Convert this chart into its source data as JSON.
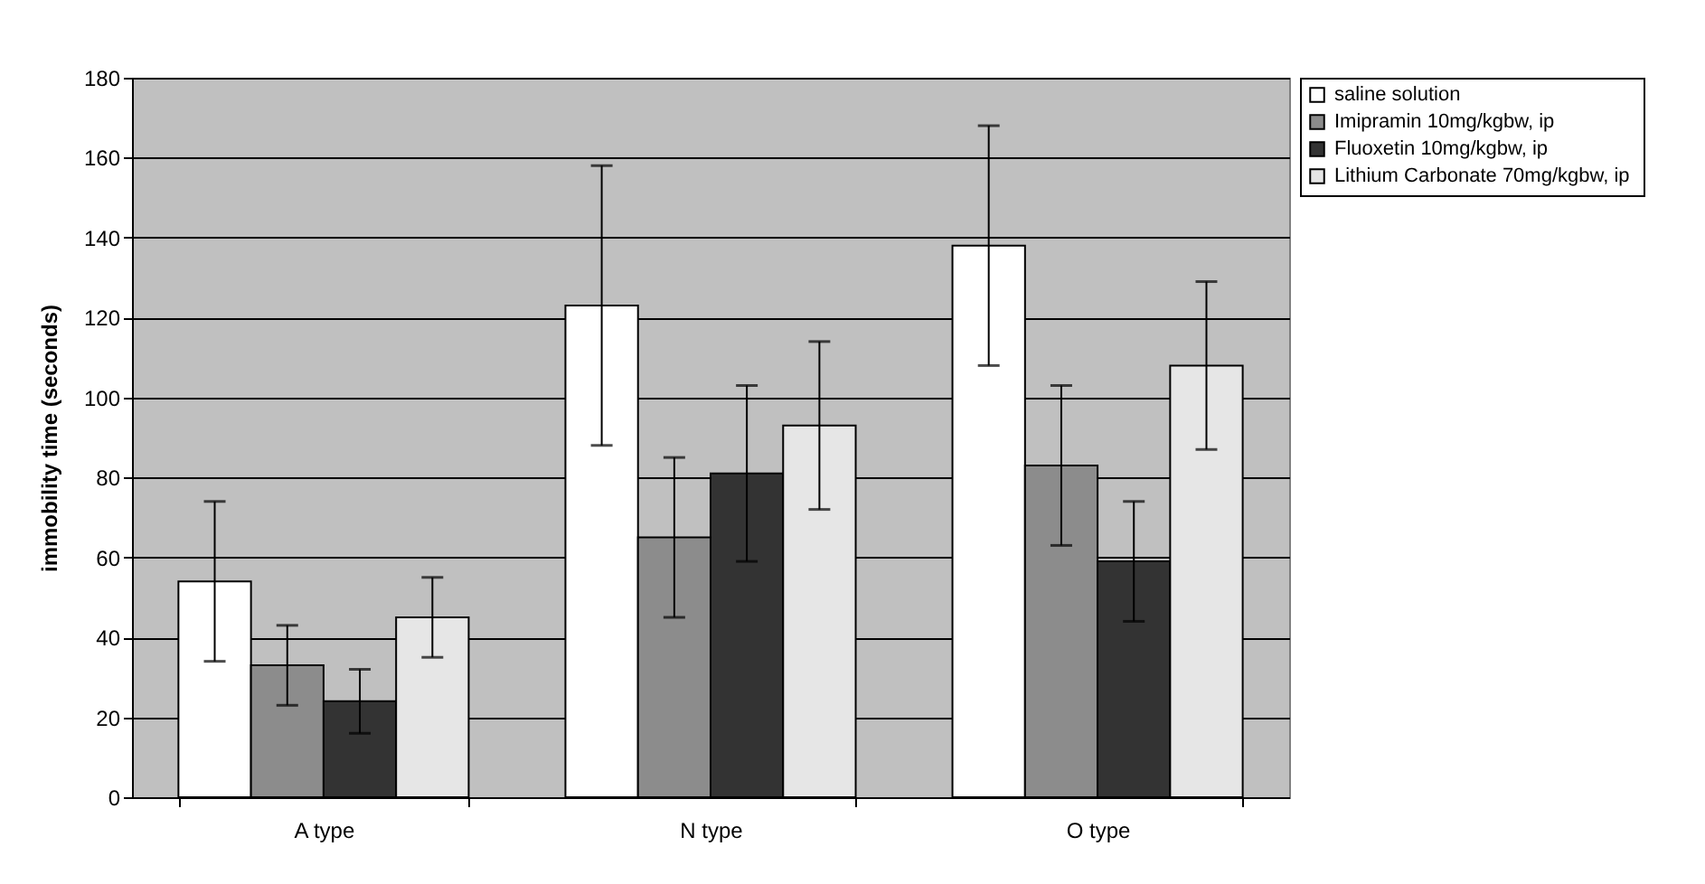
{
  "chart_data": {
    "type": "bar",
    "ylabel": "immobility time (seconds)",
    "categories": [
      "A type",
      "N type",
      "O type"
    ],
    "series": [
      {
        "name": "saline solution",
        "color": "#ffffff",
        "values": [
          54,
          123,
          138
        ],
        "errors": [
          20,
          35,
          30
        ]
      },
      {
        "name": "Imipramin 10mg/kgbw, ip",
        "color": "#8c8c8c",
        "values": [
          33,
          65,
          83
        ],
        "errors": [
          10,
          20,
          20
        ]
      },
      {
        "name": "Fluoxetin 10mg/kgbw, ip",
        "color": "#333333",
        "values": [
          24,
          81,
          59
        ],
        "errors": [
          8,
          22,
          15
        ]
      },
      {
        "name": "Lithium Carbonate  70mg/kgbw, ip",
        "color": "#e6e6e6",
        "values": [
          45,
          93,
          108
        ],
        "errors": [
          10,
          21,
          21
        ]
      }
    ],
    "ylim": [
      0,
      180
    ],
    "yticks": [
      0,
      20,
      40,
      60,
      80,
      100,
      120,
      140,
      160,
      180
    ],
    "grid": "y",
    "legend": "right"
  }
}
